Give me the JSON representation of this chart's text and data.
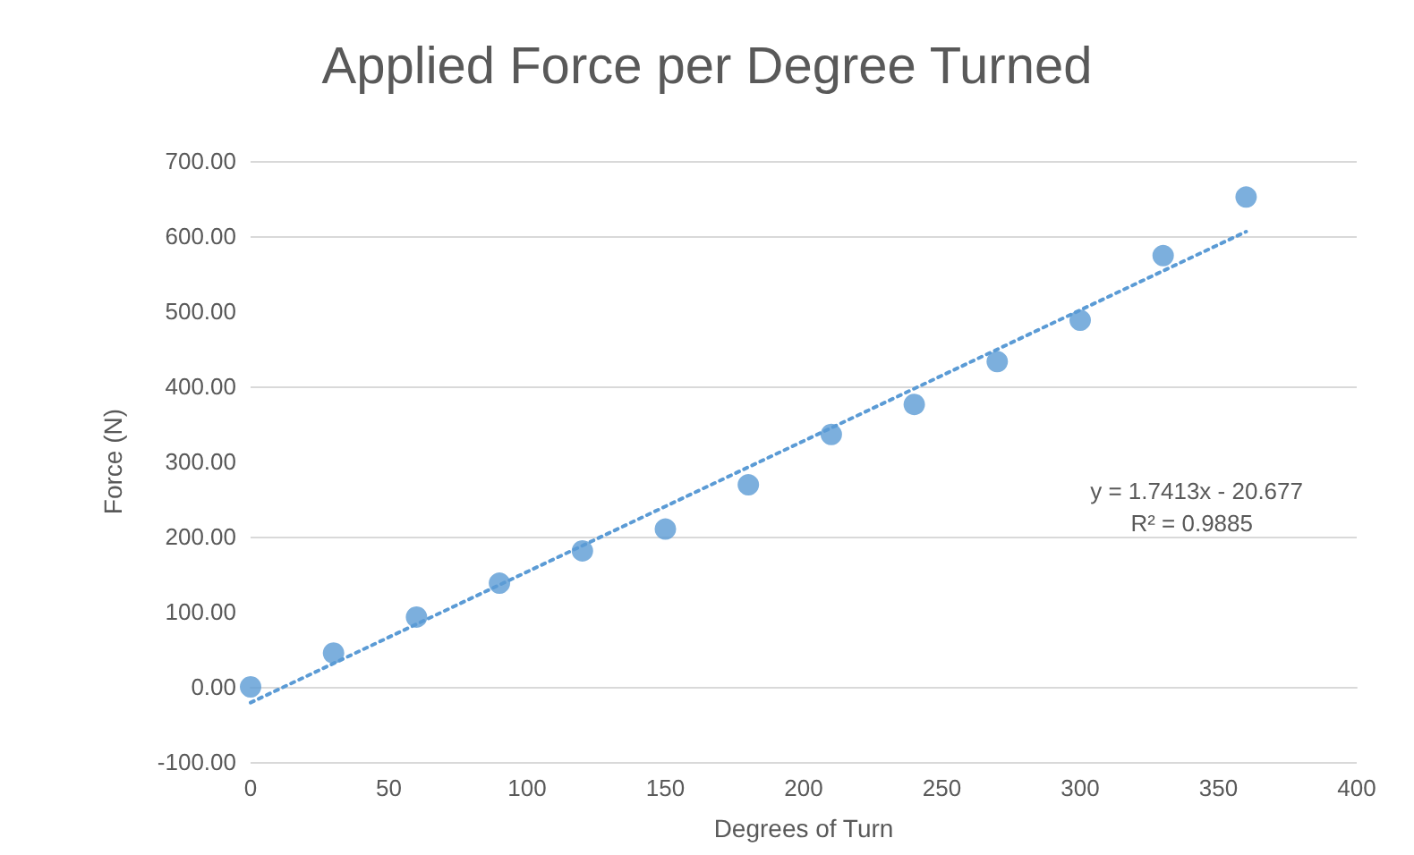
{
  "chart_data": {
    "type": "scatter",
    "title": "Applied Force per Degree Turned",
    "xlabel": "Degrees of Turn",
    "ylabel": "Force (N)",
    "series": [
      {
        "type": "scatter",
        "color": "#5b9bd5",
        "marker": "circle",
        "x": [
          0,
          30,
          60,
          90,
          120,
          150,
          180,
          210,
          240,
          270,
          300,
          330,
          360
        ],
        "values": [
          0,
          45,
          93,
          138,
          181,
          210,
          269,
          336,
          376,
          433,
          488,
          574,
          652
        ]
      },
      {
        "type": "line",
        "color": "#5b9bd5",
        "line_style": "dotted",
        "marker": "none",
        "x": [
          0,
          360
        ],
        "values": [
          -21,
          606
        ]
      }
    ],
    "xlim": [
      0,
      400
    ],
    "xticks": [
      0,
      50,
      100,
      150,
      200,
      250,
      300,
      350,
      400
    ],
    "ylim": [
      -100,
      700
    ],
    "yticks": [
      {
        "value": -100,
        "label": "-100.00"
      },
      {
        "value": 0,
        "label": "0.00"
      },
      {
        "value": 100,
        "label": "100.00"
      },
      {
        "value": 200,
        "label": "200.00"
      },
      {
        "value": 300,
        "label": "300.00"
      },
      {
        "value": 400,
        "label": "400.00"
      },
      {
        "value": 500,
        "label": "500.00"
      },
      {
        "value": 600,
        "label": "600.00"
      },
      {
        "value": 700,
        "label": "700.00"
      }
    ],
    "grid": "y",
    "annotations": [
      "y = 1.7413x - 20.677",
      "R² = 0.9885"
    ]
  }
}
